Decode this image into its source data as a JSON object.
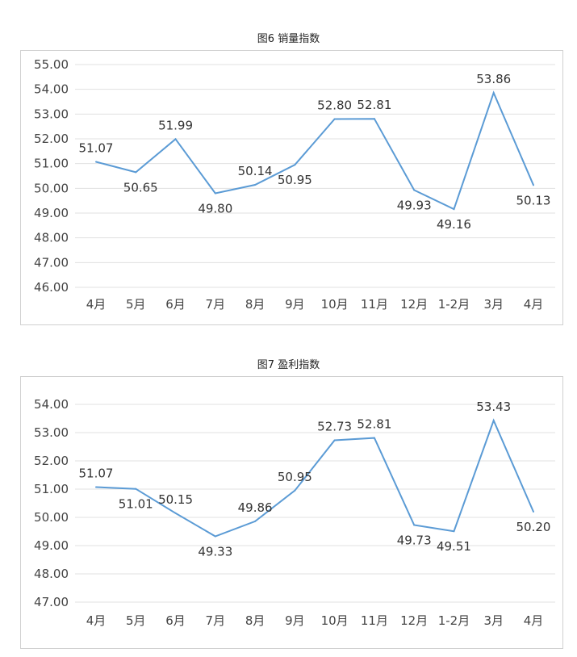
{
  "chart_data": [
    {
      "type": "line",
      "title": "图6 销量指数",
      "categories": [
        "4月",
        "5月",
        "6月",
        "7月",
        "8月",
        "9月",
        "10月",
        "11月",
        "12月",
        "1-2月",
        "3月",
        "4月"
      ],
      "values": [
        51.07,
        50.65,
        51.99,
        49.8,
        50.14,
        50.95,
        52.8,
        52.81,
        49.93,
        49.16,
        53.86,
        50.13
      ],
      "value_labels": [
        "51.07",
        "50.65",
        "51.99",
        "49.80",
        "50.14",
        "50.95",
        "52.80",
        "52.81",
        "49.93",
        "49.16",
        "53.86",
        "50.13"
      ],
      "y_ticks": [
        "46.00",
        "47.00",
        "48.00",
        "49.00",
        "50.00",
        "51.00",
        "52.00",
        "53.00",
        "54.00",
        "55.00"
      ],
      "ylim": [
        46,
        55
      ],
      "grid": true,
      "line_color": "#5b9bd5"
    },
    {
      "type": "line",
      "title": "图7 盈利指数",
      "categories": [
        "4月",
        "5月",
        "6月",
        "7月",
        "8月",
        "9月",
        "10月",
        "11月",
        "12月",
        "1-2月",
        "3月",
        "4月"
      ],
      "values": [
        51.07,
        51.01,
        50.15,
        49.33,
        49.86,
        50.95,
        52.73,
        52.81,
        49.73,
        49.51,
        53.43,
        50.2
      ],
      "value_labels": [
        "51.07",
        "51.01",
        "50.15",
        "49.33",
        "49.86",
        "50.95",
        "52.73",
        "52.81",
        "49.73",
        "49.51",
        "53.43",
        "50.20"
      ],
      "y_ticks": [
        "47.00",
        "48.00",
        "49.00",
        "50.00",
        "51.00",
        "52.00",
        "53.00",
        "54.00"
      ],
      "ylim": [
        47,
        54
      ],
      "grid": true,
      "line_color": "#5b9bd5"
    }
  ]
}
